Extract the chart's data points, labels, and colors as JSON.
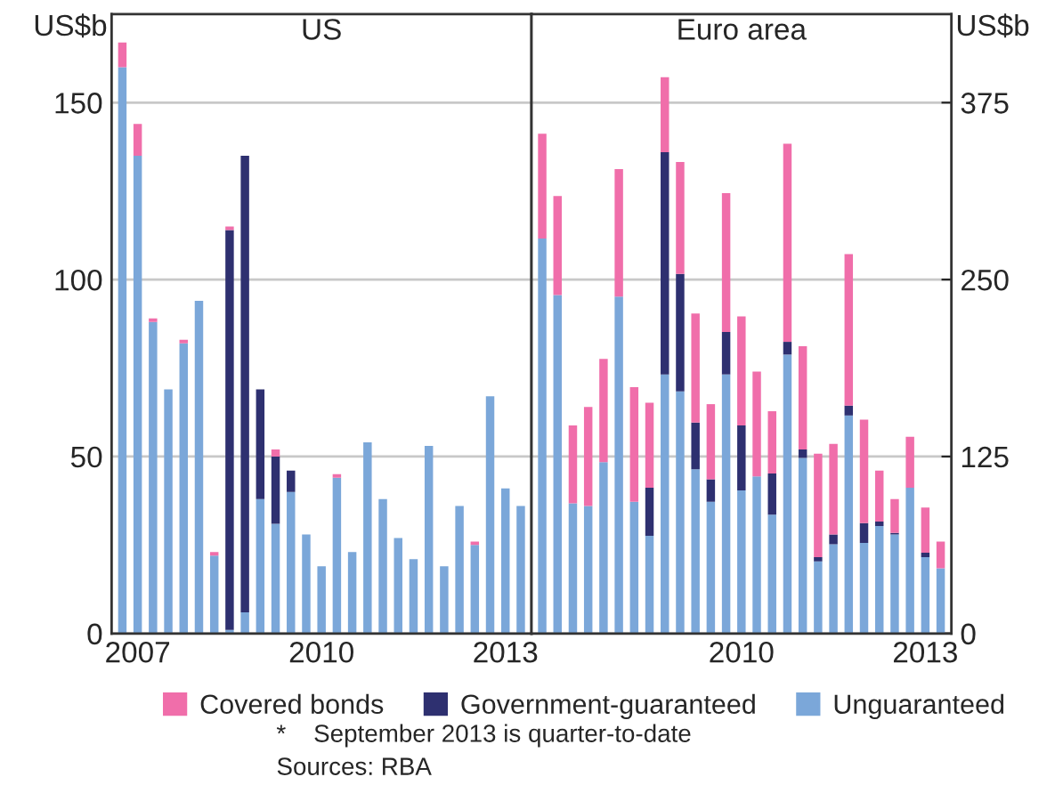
{
  "chart_data": [
    {
      "type": "bar",
      "title": "US",
      "ylabel": "US$b",
      "stacked": true,
      "legend": "bottom",
      "grid": "y",
      "categories": [
        null,
        "2007",
        null,
        null,
        null,
        null,
        null,
        null,
        null,
        null,
        null,
        null,
        null,
        "2010",
        null,
        null,
        null,
        null,
        null,
        null,
        null,
        null,
        null,
        null,
        null,
        "2013",
        null
      ],
      "ylim": [
        0,
        175
      ],
      "yticks": [
        0,
        50,
        100,
        150
      ],
      "series": [
        {
          "name": "Unguaranteed",
          "color": "#7ba7d9",
          "values": [
            160,
            135,
            88,
            69,
            82,
            94,
            22,
            1,
            6,
            38,
            31,
            40,
            28,
            19,
            44,
            23,
            54,
            38,
            27,
            21,
            53,
            19,
            36,
            25,
            67,
            41,
            36
          ]
        },
        {
          "name": "Government-guaranteed",
          "color": "#2e3070",
          "values": [
            0,
            0,
            0,
            0,
            0,
            0,
            0,
            113,
            129,
            31,
            19,
            6,
            0,
            0,
            0,
            0,
            0,
            0,
            0,
            0,
            0,
            0,
            0,
            0,
            0,
            0,
            0
          ]
        },
        {
          "name": "Covered bonds",
          "color": "#f06eaa",
          "values": [
            7,
            9,
            1,
            0,
            1,
            0,
            1,
            1,
            0,
            0,
            2,
            0,
            0,
            0,
            1,
            0,
            0,
            0,
            0,
            0,
            0,
            0,
            0,
            1,
            0,
            0,
            0
          ]
        }
      ],
      "annotations": [
        "*    September 2013 is quarter-to-date",
        "Sources: RBA"
      ]
    },
    {
      "type": "bar",
      "title": "Euro area",
      "ylabel": "US$b",
      "stacked": true,
      "legend": "bottom",
      "grid": "y",
      "categories": [
        null,
        null,
        null,
        null,
        null,
        null,
        null,
        null,
        null,
        null,
        null,
        null,
        null,
        "2010",
        null,
        null,
        null,
        null,
        null,
        null,
        null,
        null,
        null,
        null,
        null,
        "2013",
        null
      ],
      "ylim": [
        0,
        437.5
      ],
      "yticks": [
        0,
        125,
        250,
        375
      ],
      "series": [
        {
          "name": "Unguaranteed",
          "color": "#7ba7d9",
          "values": [
            279,
            239,
            92,
            90,
            121,
            238,
            93,
            69,
            183,
            171,
            116,
            93,
            183,
            101,
            111,
            84,
            197,
            124,
            51,
            63,
            154,
            64,
            76,
            70,
            103,
            54,
            46
          ]
        },
        {
          "name": "Government-guaranteed",
          "color": "#2e3070",
          "values": [
            0,
            0,
            0,
            0,
            0,
            0,
            0,
            34,
            157,
            83,
            33,
            16,
            30,
            46,
            0,
            29,
            9,
            6,
            3,
            7,
            7,
            14,
            3,
            1,
            0,
            3,
            0
          ]
        },
        {
          "name": "Covered bonds",
          "color": "#f06eaa",
          "values": [
            74,
            70,
            55,
            70,
            73,
            90,
            81,
            60,
            53,
            79,
            77,
            53,
            98,
            77,
            74,
            44,
            140,
            73,
            73,
            64,
            107,
            73,
            36,
            24,
            36,
            32,
            19
          ]
        }
      ]
    }
  ]
}
